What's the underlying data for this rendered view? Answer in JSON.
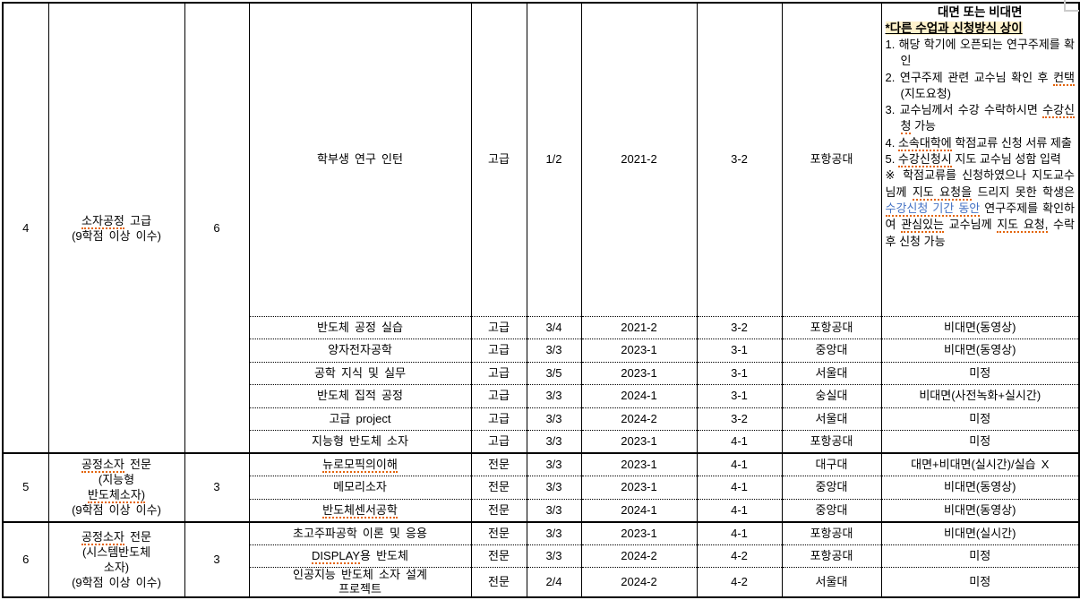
{
  "colors": {
    "blue_text": "#4472C4",
    "spellcheck_underline": "#E3650A",
    "subtitle_highlight": "#FFF2CC",
    "border": "#000000"
  },
  "notice": {
    "title": "대면 또는 비대면",
    "subtitle": "*다른 수업과 신청방식 상이",
    "items": [
      {
        "num": "1.",
        "segments": [
          {
            "t": "해당 학기에 오픈되는 연구주제를 확인"
          }
        ]
      },
      {
        "num": "2.",
        "segments": [
          {
            "t": "연구주제 관련 교수님 확인 후 "
          },
          {
            "t": "컨택",
            "sp": true
          },
          {
            "t": "(지도요청)"
          }
        ]
      },
      {
        "num": "3.",
        "segments": [
          {
            "t": "교수님께서 수강 수락하시면 "
          },
          {
            "t": "수강신청",
            "sp": true
          },
          {
            "t": " 가능"
          }
        ]
      },
      {
        "num": "4.",
        "segments": [
          {
            "t": "소속대학에",
            "sp": true
          },
          {
            "t": " 학점교류 신청 서류 제출"
          }
        ]
      },
      {
        "num": "5.",
        "segments": [
          {
            "t": "수강신청시",
            "sp": true
          },
          {
            "t": " 지도 교수님 성함 입력"
          }
        ]
      }
    ],
    "footnote_segments": [
      {
        "t": "※ 학점교류를 신청하였으나 지도교수님께 "
      },
      {
        "t": "지도 요청을",
        "sp": true
      },
      {
        "t": " 드리지 못한 학생은 "
      },
      {
        "t": "수강신청 기간 동안",
        "blue": true,
        "sp": true
      },
      {
        "t": " 연구주제를 확인하여 "
      },
      {
        "t": "관심있는",
        "sp": true
      },
      {
        "t": " 교수님께 "
      },
      {
        "t": "지도 요청,",
        "sp": true
      },
      {
        "t": " 수락 후 신청 가능"
      }
    ]
  },
  "table": {
    "groups": [
      {
        "no": "4",
        "category_lines": [
          [
            {
              "t": "소자공정",
              "sp": true
            },
            {
              "t": " 고급"
            }
          ],
          [
            {
              "t": "(9학점 이상 이수)"
            }
          ]
        ],
        "credits": "6",
        "rows": [
          {
            "course": "학부생 연구 인턴",
            "level": "고급",
            "ratio": "1/2",
            "term": "2021-2",
            "grade": "3-2",
            "university": "포항공대",
            "method": "__notice__",
            "tall": true
          },
          {
            "course": "반도체 공정 실습",
            "level": "고급",
            "ratio": "3/4",
            "term": "2021-2",
            "grade": "3-2",
            "university": "포항공대",
            "method": "비대면(동영상)"
          },
          {
            "course": "양자전자공학",
            "level": "고급",
            "ratio": "3/3",
            "term": "2023-1",
            "grade": "3-1",
            "university": "중앙대",
            "method": "비대면(동영상)"
          },
          {
            "course": "공학 지식 및 실무",
            "level": "고급",
            "ratio": "3/5",
            "term": "2023-1",
            "grade": "3-1",
            "university": "서울대",
            "method": "미정"
          },
          {
            "course": "반도체 집적 공정",
            "level": "고급",
            "ratio": "3/3",
            "term": "2024-1",
            "grade": "3-1",
            "university": "숭실대",
            "method": "비대면(사전녹화+실시간)"
          },
          {
            "course": "고급 project",
            "level": "고급",
            "ratio": "3/3",
            "term": "2024-2",
            "grade": "3-2",
            "university": "서울대",
            "method": "미정"
          },
          {
            "course": "지능형 반도체 소자",
            "level": "고급",
            "ratio": "3/3",
            "term": "2023-1",
            "grade": "4-1",
            "university": "포항공대",
            "method": "미정"
          }
        ]
      },
      {
        "no": "5",
        "category_lines": [
          [
            {
              "t": "공정소자",
              "sp": true
            },
            {
              "t": " 전문"
            }
          ],
          [
            {
              "t": "(지능형"
            }
          ],
          [
            {
              "t": "반도체소자)",
              "sp": true
            }
          ],
          [
            {
              "t": "(9학점 이상 이수)"
            }
          ]
        ],
        "credits": "3",
        "rows": [
          {
            "course": [
              {
                "t": "뉴로모픽의이해",
                "sp": true
              }
            ],
            "level": "전문",
            "ratio": "3/3",
            "term": "2023-1",
            "grade": "4-1",
            "university": "대구대",
            "method": "대면+비대면(실시간)/실습 X"
          },
          {
            "course": "메모리소자",
            "level": "전문",
            "ratio": "3/3",
            "term": "2023-1",
            "grade": "4-1",
            "university": "중앙대",
            "method": "비대면(동영상)"
          },
          {
            "course": [
              {
                "t": "반도체센서공학",
                "sp": true
              }
            ],
            "level": "전문",
            "ratio": "3/3",
            "term": "2024-1",
            "grade": "4-1",
            "university": "중앙대",
            "method": "비대면(동영상)"
          }
        ]
      },
      {
        "no": "6",
        "category_lines": [
          [
            {
              "t": "공정소자",
              "sp": true
            },
            {
              "t": " 전문"
            }
          ],
          [
            {
              "t": "(시스템반도체"
            }
          ],
          [
            {
              "t": "소자)"
            }
          ],
          [
            {
              "t": "(9학점 이상 이수)"
            }
          ]
        ],
        "credits": "3",
        "rows": [
          {
            "course": "초고주파공학 이론 및 응용",
            "level": "전문",
            "ratio": "3/3",
            "term": "2023-1",
            "grade": "4-1",
            "university": "포항공대",
            "method": "비대면(실시간)"
          },
          {
            "course": [
              {
                "t": "DISPLAY",
                "sp": true
              },
              {
                "t": "용 반도체"
              }
            ],
            "level": "전문",
            "ratio": "3/3",
            "term": "2024-2",
            "grade": "4-2",
            "university": "포항공대",
            "method": "미정"
          },
          {
            "course": [
              {
                "t": "인공지능 반도체 소자 설계"
              },
              {
                "br": true
              },
              {
                "t": "프로젝트"
              }
            ],
            "level": "전문",
            "ratio": "2/4",
            "term": "2024-2",
            "grade": "4-2",
            "university": "서울대",
            "method": "미정",
            "h2": true
          }
        ]
      }
    ]
  }
}
